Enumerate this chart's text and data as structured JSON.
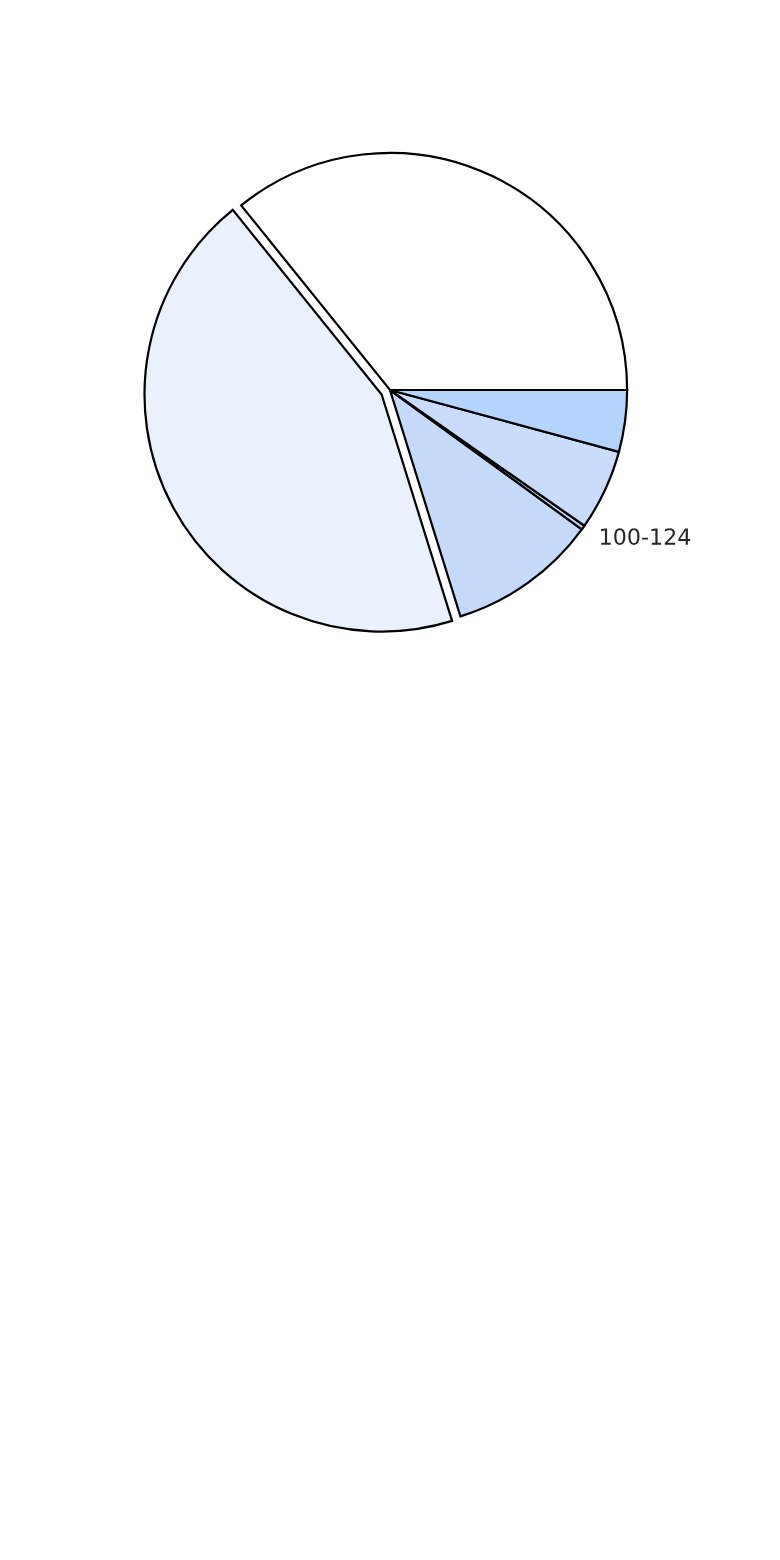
{
  "chart_data": {
    "type": "pie",
    "categories": [
      null,
      null,
      null,
      "100-124",
      null,
      null
    ],
    "values": [
      35.8,
      44.0,
      10.2,
      0.3,
      5.5,
      4.2
    ],
    "colors": [
      "#ffffff",
      "#eaf1fd",
      "#c5d9fb",
      "#c5d9fb",
      "#c9dcfb",
      "#b3d4fc"
    ]
  }
}
